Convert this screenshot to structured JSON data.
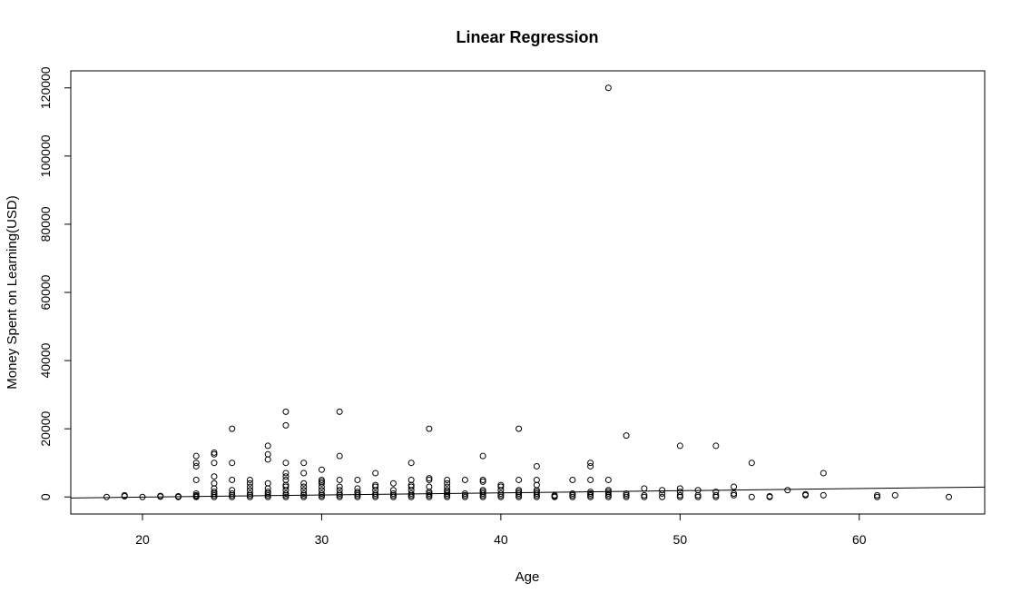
{
  "chart_data": {
    "type": "scatter",
    "title": "Linear Regression",
    "xlabel": "Age",
    "ylabel": "Money Spent on Learning(USD)",
    "xlim": [
      16,
      67
    ],
    "ylim": [
      -5000,
      125000
    ],
    "x_ticks": [
      20,
      30,
      40,
      50,
      60
    ],
    "y_ticks": [
      0,
      20000,
      40000,
      60000,
      80000,
      100000,
      120000
    ],
    "grid": false,
    "legend": "none",
    "points": [
      [
        18,
        0
      ],
      [
        19,
        200
      ],
      [
        19,
        500
      ],
      [
        20,
        0
      ],
      [
        21,
        100
      ],
      [
        21,
        300
      ],
      [
        22,
        0
      ],
      [
        22,
        200
      ],
      [
        23,
        12000
      ],
      [
        23,
        10000
      ],
      [
        23,
        9000
      ],
      [
        23,
        5000
      ],
      [
        23,
        1000
      ],
      [
        23,
        500
      ],
      [
        23,
        200
      ],
      [
        23,
        0
      ],
      [
        24,
        13000
      ],
      [
        24,
        12500
      ],
      [
        24,
        10000
      ],
      [
        24,
        6000
      ],
      [
        24,
        4000
      ],
      [
        24,
        2500
      ],
      [
        24,
        1500
      ],
      [
        24,
        1000
      ],
      [
        24,
        500
      ],
      [
        24,
        0
      ],
      [
        25,
        20000
      ],
      [
        25,
        10000
      ],
      [
        25,
        5000
      ],
      [
        25,
        2000
      ],
      [
        25,
        1000
      ],
      [
        25,
        500
      ],
      [
        25,
        0
      ],
      [
        26,
        5000
      ],
      [
        26,
        4000
      ],
      [
        26,
        3000
      ],
      [
        26,
        2000
      ],
      [
        26,
        1000
      ],
      [
        26,
        500
      ],
      [
        26,
        0
      ],
      [
        27,
        15000
      ],
      [
        27,
        12500
      ],
      [
        27,
        11000
      ],
      [
        27,
        4000
      ],
      [
        27,
        2500
      ],
      [
        27,
        1500
      ],
      [
        27,
        1000
      ],
      [
        27,
        500
      ],
      [
        27,
        0
      ],
      [
        28,
        25000
      ],
      [
        28,
        21000
      ],
      [
        28,
        10000
      ],
      [
        28,
        7000
      ],
      [
        28,
        6000
      ],
      [
        28,
        5000
      ],
      [
        28,
        3500
      ],
      [
        28,
        3000
      ],
      [
        28,
        2000
      ],
      [
        28,
        1000
      ],
      [
        28,
        500
      ],
      [
        28,
        0
      ],
      [
        29,
        10000
      ],
      [
        29,
        7000
      ],
      [
        29,
        4000
      ],
      [
        29,
        3000
      ],
      [
        29,
        2000
      ],
      [
        29,
        1000
      ],
      [
        29,
        500
      ],
      [
        29,
        0
      ],
      [
        30,
        8000
      ],
      [
        30,
        5000
      ],
      [
        30,
        4500
      ],
      [
        30,
        4000
      ],
      [
        30,
        3000
      ],
      [
        30,
        2000
      ],
      [
        30,
        1000
      ],
      [
        30,
        500
      ],
      [
        30,
        0
      ],
      [
        31,
        25000
      ],
      [
        31,
        12000
      ],
      [
        31,
        5000
      ],
      [
        31,
        3000
      ],
      [
        31,
        2000
      ],
      [
        31,
        1000
      ],
      [
        31,
        500
      ],
      [
        31,
        0
      ],
      [
        32,
        5000
      ],
      [
        32,
        2500
      ],
      [
        32,
        1500
      ],
      [
        32,
        1000
      ],
      [
        32,
        500
      ],
      [
        32,
        0
      ],
      [
        33,
        7000
      ],
      [
        33,
        3500
      ],
      [
        33,
        3000
      ],
      [
        33,
        2000
      ],
      [
        33,
        1000
      ],
      [
        33,
        500
      ],
      [
        33,
        0
      ],
      [
        34,
        4000
      ],
      [
        34,
        2000
      ],
      [
        34,
        1000
      ],
      [
        34,
        500
      ],
      [
        34,
        0
      ],
      [
        35,
        10000
      ],
      [
        35,
        5000
      ],
      [
        35,
        3500
      ],
      [
        35,
        3000
      ],
      [
        35,
        2000
      ],
      [
        35,
        1000
      ],
      [
        35,
        500
      ],
      [
        35,
        0
      ],
      [
        36,
        20000
      ],
      [
        36,
        5500
      ],
      [
        36,
        5000
      ],
      [
        36,
        3000
      ],
      [
        36,
        1500
      ],
      [
        36,
        1000
      ],
      [
        36,
        500
      ],
      [
        36,
        0
      ],
      [
        37,
        5000
      ],
      [
        37,
        4000
      ],
      [
        37,
        3000
      ],
      [
        37,
        2000
      ],
      [
        37,
        1500
      ],
      [
        37,
        1000
      ],
      [
        37,
        500
      ],
      [
        37,
        0
      ],
      [
        38,
        5000
      ],
      [
        38,
        1000
      ],
      [
        38,
        500
      ],
      [
        38,
        0
      ],
      [
        39,
        12000
      ],
      [
        39,
        5000
      ],
      [
        39,
        4500
      ],
      [
        39,
        2000
      ],
      [
        39,
        1500
      ],
      [
        39,
        1000
      ],
      [
        39,
        500
      ],
      [
        39,
        0
      ],
      [
        40,
        3500
      ],
      [
        40,
        3000
      ],
      [
        40,
        2000
      ],
      [
        40,
        1000
      ],
      [
        40,
        500
      ],
      [
        40,
        0
      ],
      [
        41,
        20000
      ],
      [
        41,
        5000
      ],
      [
        41,
        2000
      ],
      [
        41,
        1500
      ],
      [
        41,
        1000
      ],
      [
        41,
        500
      ],
      [
        41,
        0
      ],
      [
        42,
        9000
      ],
      [
        42,
        5000
      ],
      [
        42,
        3500
      ],
      [
        42,
        2000
      ],
      [
        42,
        1500
      ],
      [
        42,
        1000
      ],
      [
        42,
        500
      ],
      [
        42,
        0
      ],
      [
        43,
        500
      ],
      [
        43,
        200
      ],
      [
        43,
        0
      ],
      [
        44,
        5000
      ],
      [
        44,
        1000
      ],
      [
        44,
        500
      ],
      [
        44,
        0
      ],
      [
        45,
        10000
      ],
      [
        45,
        9000
      ],
      [
        45,
        5000
      ],
      [
        45,
        1500
      ],
      [
        45,
        1000
      ],
      [
        45,
        500
      ],
      [
        45,
        0
      ],
      [
        46,
        120000
      ],
      [
        46,
        5000
      ],
      [
        46,
        2000
      ],
      [
        46,
        1500
      ],
      [
        46,
        1000
      ],
      [
        46,
        500
      ],
      [
        46,
        0
      ],
      [
        47,
        18000
      ],
      [
        47,
        1000
      ],
      [
        47,
        500
      ],
      [
        47,
        0
      ],
      [
        48,
        2500
      ],
      [
        48,
        500
      ],
      [
        48,
        0
      ],
      [
        49,
        2000
      ],
      [
        49,
        1000
      ],
      [
        49,
        0
      ],
      [
        50,
        15000
      ],
      [
        50,
        2500
      ],
      [
        50,
        1500
      ],
      [
        50,
        500
      ],
      [
        50,
        0
      ],
      [
        51,
        2000
      ],
      [
        51,
        500
      ],
      [
        51,
        0
      ],
      [
        52,
        15000
      ],
      [
        52,
        1500
      ],
      [
        52,
        500
      ],
      [
        52,
        0
      ],
      [
        53,
        3000
      ],
      [
        53,
        1000
      ],
      [
        53,
        500
      ],
      [
        54,
        10000
      ],
      [
        54,
        0
      ],
      [
        55,
        0
      ],
      [
        55,
        200
      ],
      [
        56,
        2000
      ],
      [
        57,
        500
      ],
      [
        57,
        800
      ],
      [
        58,
        7000
      ],
      [
        58,
        500
      ],
      [
        61,
        500
      ],
      [
        61,
        0
      ],
      [
        62,
        500
      ],
      [
        65,
        0
      ]
    ],
    "regression_line": {
      "x": [
        16,
        67
      ],
      "y": [
        -300,
        2900
      ]
    }
  }
}
